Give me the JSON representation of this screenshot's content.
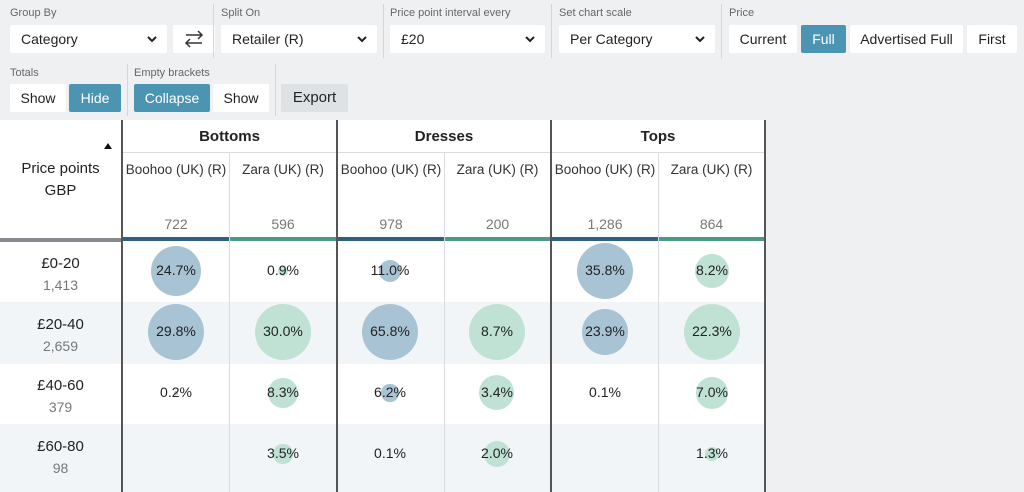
{
  "toolbar": {
    "group_by": {
      "label": "Group By",
      "value": "Category"
    },
    "split_on": {
      "label": "Split On",
      "value": "Retailer (R)"
    },
    "interval": {
      "label": "Price point interval every",
      "value": "£20"
    },
    "scale": {
      "label": "Set chart scale",
      "value": "Per Category"
    },
    "price": {
      "label": "Price",
      "options": [
        "Current",
        "Full",
        "Advertised Full",
        "First"
      ],
      "selected": "Full"
    },
    "totals": {
      "label": "Totals",
      "options": [
        "Show",
        "Hide"
      ],
      "selected": "Hide"
    },
    "empty": {
      "label": "Empty brackets",
      "options": [
        "Collapse",
        "Show"
      ],
      "selected": "Collapse"
    },
    "export_label": "Export"
  },
  "header": {
    "price_points_label": "Price points GBP",
    "categories": [
      "Bottoms",
      "Dresses",
      "Tops"
    ],
    "columns": [
      {
        "retailer": "Boohoo (UK) (R)",
        "count": "722",
        "color": "#2e5f82"
      },
      {
        "retailer": "Zara (UK) (R)",
        "count": "596",
        "color": "#4c9a85"
      },
      {
        "retailer": "Boohoo (UK) (R)",
        "count": "978",
        "color": "#2e5f82"
      },
      {
        "retailer": "Zara (UK) (R)",
        "count": "200",
        "color": "#4c9a85"
      },
      {
        "retailer": "Boohoo (UK) (R)",
        "count": "1,286",
        "color": "#2e5f82"
      },
      {
        "retailer": "Zara (UK) (R)",
        "count": "864",
        "color": "#4c9a85"
      }
    ]
  },
  "rows": [
    {
      "label": "£0-20",
      "count": "1,413",
      "values": [
        "24.7%",
        "0.9%",
        "11.0%",
        "",
        "35.8%",
        "8.2%"
      ],
      "shares": [
        24.7,
        0.9,
        11.0,
        null,
        35.8,
        8.2
      ]
    },
    {
      "label": "£20-40",
      "count": "2,659",
      "values": [
        "29.8%",
        "30.0%",
        "65.8%",
        "8.7%",
        "23.9%",
        "22.3%"
      ],
      "shares": [
        29.8,
        30.0,
        65.8,
        8.7,
        23.9,
        22.3
      ]
    },
    {
      "label": "£40-60",
      "count": "379",
      "values": [
        "0.2%",
        "8.3%",
        "6.2%",
        "3.4%",
        "0.1%",
        "7.0%"
      ],
      "shares": [
        0.2,
        8.3,
        6.2,
        3.4,
        0.1,
        7.0
      ]
    },
    {
      "label": "£60-80",
      "count": "98",
      "values": [
        "",
        "3.5%",
        "0.1%",
        "2.0%",
        "",
        "1.3%"
      ],
      "shares": [
        null,
        3.5,
        0.1,
        2.0,
        null,
        1.3
      ]
    }
  ],
  "colors": {
    "boohoo_bubble": "#a7c3d4",
    "zara_bubble": "#bfe2d5",
    "accent": "#4b95b3"
  }
}
